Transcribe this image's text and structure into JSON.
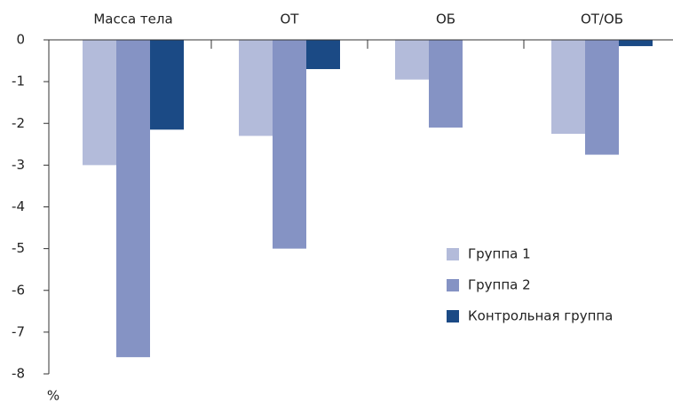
{
  "chart_data": {
    "type": "bar",
    "categories": [
      "Масса тела",
      "ОТ",
      "ОБ",
      "ОТ/ОБ"
    ],
    "series": [
      {
        "name": "Группа 1",
        "color": "#b3bbda",
        "values": [
          -3.0,
          -2.3,
          -0.95,
          -2.25
        ]
      },
      {
        "name": "Группа 2",
        "color": "#8593c4",
        "values": [
          -7.6,
          -5.0,
          -2.1,
          -2.75
        ]
      },
      {
        "name": "Контрольная группа",
        "color": "#1b4a85",
        "values": [
          -2.15,
          -0.7,
          null,
          -0.15
        ]
      }
    ],
    "ylim": [
      -8,
      0
    ],
    "yticks": [
      0,
      -1,
      -2,
      -3,
      -4,
      -5,
      -6,
      -7,
      -8
    ],
    "ylabel": "%"
  }
}
